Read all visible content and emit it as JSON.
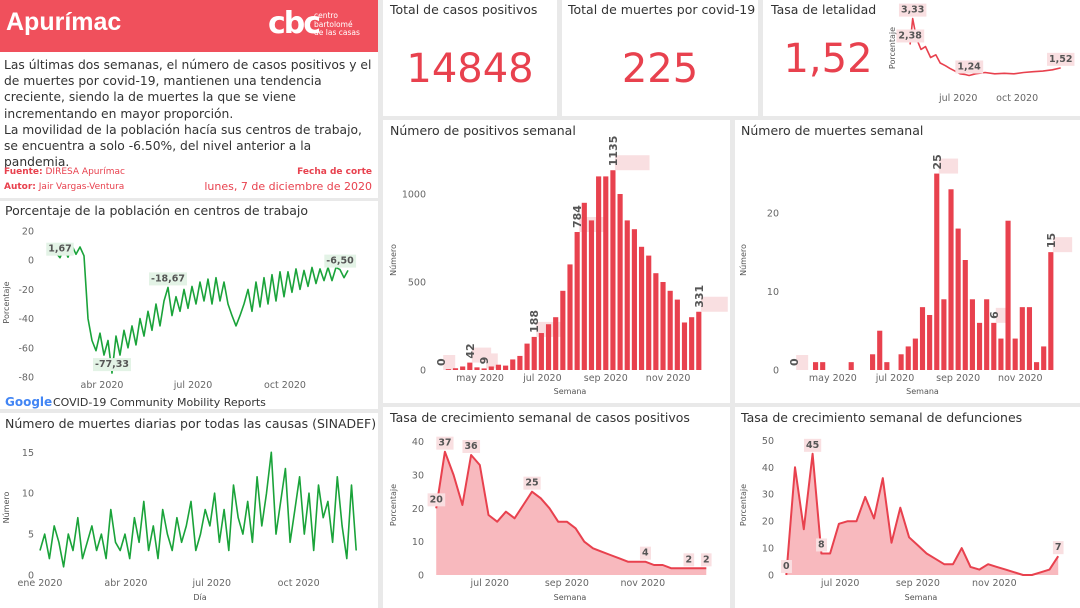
{
  "header": {
    "title": "Apurímac",
    "logo": "cbc",
    "logo_lines": [
      "centro",
      "bartolomé",
      "de las casas"
    ],
    "paragraphs": [
      "Las últimas dos semanas, el número de casos positivos y el de muertes por covid-19, mantienen una tendencia creciente, siendo la de muertes la que se viene incrementando en mayor proporción.",
      "La movilidad de la población hacía sus centros de trabajo, se encuentra a solo -6.50%, del nivel anterior a la pandemia."
    ],
    "source": {
      "label": "Fuente:",
      "value": "DIRESA Apurímac"
    },
    "author": {
      "label": "Autor:",
      "value": "Jair Vargas-Ventura"
    },
    "cutoff": {
      "label": "Fecha de corte",
      "value": "lunes, 7 de diciembre de 2020"
    }
  },
  "kpis": [
    {
      "label": "Total de casos positivos",
      "value": "14848"
    },
    {
      "label": "Total de muertes por covid-19",
      "value": "225"
    },
    {
      "label": "Tasa de letalidad",
      "value": "1,52"
    }
  ],
  "chart_data": [
    {
      "type": "line",
      "title": "Porcentaje de la población en centros de trabajo",
      "ylabel": "Porcentaje",
      "logo": "Google",
      "source": "COVID-19 Community Mobility Reports",
      "color": "#1aa33a",
      "label_bg": "#e3f3e6",
      "xlim": [
        30,
        350
      ],
      "xticks": [
        {
          "value": 92,
          "label": "abr 2020"
        },
        {
          "value": 183,
          "label": "jul 2020"
        },
        {
          "value": 275,
          "label": "oct 2020"
        }
      ],
      "ylim": [
        -80,
        22
      ],
      "yticks": [
        20,
        0,
        -20,
        -40,
        -60,
        -80
      ],
      "x": [
        46,
        50,
        54,
        58,
        62,
        66,
        70,
        74,
        78,
        82,
        86,
        90,
        94,
        98,
        102,
        106,
        110,
        114,
        118,
        122,
        126,
        130,
        134,
        138,
        142,
        146,
        150,
        154,
        158,
        162,
        166,
        170,
        174,
        178,
        182,
        186,
        190,
        194,
        198,
        202,
        206,
        210,
        214,
        218,
        222,
        226,
        230,
        234,
        238,
        242,
        246,
        250,
        254,
        258,
        262,
        266,
        270,
        274,
        278,
        282,
        286,
        290,
        294,
        298,
        302,
        306,
        310,
        314,
        318,
        322,
        326,
        330,
        334,
        338
      ],
      "values": [
        5,
        1.67,
        8,
        2,
        10,
        4,
        9,
        3,
        -40,
        -55,
        -62,
        -50,
        -65,
        -55,
        -77.33,
        -52,
        -65,
        -48,
        -60,
        -45,
        -58,
        -40,
        -52,
        -35,
        -48,
        -30,
        -45,
        -28,
        -18.67,
        -38,
        -25,
        -35,
        -20,
        -33,
        -18,
        -30,
        -15,
        -28,
        -13,
        -30,
        -12,
        -28,
        -15,
        -30,
        -38,
        -45,
        -38,
        -30,
        -20,
        -35,
        -15,
        -32,
        -12,
        -30,
        -10,
        -28,
        -8,
        -25,
        -8,
        -22,
        -6,
        -20,
        -7,
        -18,
        -5,
        -16,
        -6,
        -14,
        -5,
        -14,
        -5,
        -6.5,
        -12,
        -7
      ],
      "value_labels": [
        null,
        "1,67",
        null,
        null,
        null,
        null,
        null,
        null,
        null,
        null,
        null,
        null,
        null,
        null,
        "-77,33",
        null,
        null,
        null,
        null,
        null,
        null,
        null,
        null,
        null,
        null,
        null,
        null,
        null,
        "-18,67",
        null,
        null,
        null,
        null,
        null,
        null,
        null,
        null,
        null,
        null,
        null,
        null,
        null,
        null,
        null,
        null,
        null,
        null,
        null,
        null,
        null,
        null,
        null,
        null,
        null,
        null,
        null,
        null,
        null,
        null,
        null,
        null,
        null,
        null,
        null,
        null,
        null,
        null,
        null,
        null,
        null,
        null,
        "-6,50",
        null,
        null
      ]
    },
    {
      "type": "line",
      "title": "Número de muertes diarias por todas las causas (SINADEF)",
      "ylabel": "Número",
      "xlabel": "Día",
      "color": "#1aa33a",
      "xlim": [
        1,
        340
      ],
      "xticks": [
        {
          "value": 1,
          "label": "ene 2020"
        },
        {
          "value": 92,
          "label": "abr 2020"
        },
        {
          "value": 183,
          "label": "jul 2020"
        },
        {
          "value": 275,
          "label": "oct 2020"
        }
      ],
      "ylim": [
        0,
        16.5
      ],
      "yticks": [
        0,
        5,
        10,
        15
      ],
      "x": [
        1,
        6,
        11,
        16,
        21,
        26,
        31,
        36,
        41,
        46,
        51,
        56,
        61,
        66,
        71,
        76,
        81,
        86,
        91,
        96,
        101,
        106,
        111,
        116,
        121,
        126,
        131,
        136,
        141,
        146,
        151,
        156,
        161,
        166,
        171,
        176,
        181,
        186,
        191,
        196,
        201,
        206,
        211,
        216,
        221,
        226,
        231,
        236,
        241,
        246,
        251,
        256,
        261,
        266,
        271,
        276,
        281,
        286,
        291,
        296,
        301,
        306,
        311,
        316,
        321,
        326,
        331,
        336
      ],
      "values": [
        3,
        5,
        2,
        6,
        4,
        1,
        5,
        3,
        7,
        2,
        4,
        6,
        3,
        5,
        2,
        8,
        4,
        3,
        5,
        2,
        7,
        4,
        9,
        3,
        6,
        2,
        8,
        5,
        3,
        7,
        4,
        6,
        9,
        3,
        5,
        8,
        6,
        10,
        4,
        8,
        3,
        11,
        7,
        5,
        9,
        4,
        12,
        6,
        10,
        15,
        5,
        9,
        13,
        4,
        8,
        12,
        5,
        10,
        3,
        11,
        7,
        9,
        4,
        12,
        6,
        2,
        11,
        3
      ]
    },
    {
      "type": "bar",
      "title": "Número de positivos semanal",
      "ylabel": "Número",
      "xlabel": "Semana",
      "color": "#e8414e",
      "label_bg": "#f9dfe1",
      "xlim": [
        75,
        345
      ],
      "xticks": [
        {
          "value": 122,
          "label": "may 2020"
        },
        {
          "value": 183,
          "label": "jul 2020"
        },
        {
          "value": 245,
          "label": "sep 2020"
        },
        {
          "value": 306,
          "label": "nov 2020"
        }
      ],
      "ylim": [
        0,
        1250
      ],
      "yticks": [
        0,
        500,
        1000
      ],
      "x": [
        84,
        91,
        98,
        105,
        112,
        119,
        126,
        133,
        140,
        147,
        154,
        161,
        168,
        175,
        182,
        189,
        196,
        203,
        210,
        217,
        224,
        231,
        238,
        245,
        252,
        259,
        266,
        273,
        280,
        287,
        294,
        301,
        308,
        315,
        322,
        329,
        336
      ],
      "values": [
        0,
        5,
        10,
        20,
        42,
        15,
        9,
        20,
        30,
        25,
        60,
        80,
        150,
        188,
        210,
        260,
        300,
        450,
        600,
        784,
        950,
        850,
        1100,
        1100,
        1135,
        1000,
        850,
        800,
        700,
        650,
        550,
        500,
        450,
        400,
        270,
        300,
        331
      ],
      "value_labels": [
        "0",
        null,
        null,
        null,
        "42",
        null,
        "9",
        null,
        null,
        null,
        null,
        null,
        null,
        "188",
        null,
        null,
        null,
        null,
        null,
        "784",
        null,
        null,
        null,
        null,
        "1135",
        null,
        null,
        null,
        null,
        null,
        null,
        null,
        null,
        null,
        null,
        null,
        "331"
      ]
    },
    {
      "type": "bar",
      "title": "Número de muertes semanal",
      "ylabel": "Número",
      "xlabel": "Semana",
      "color": "#e8414e",
      "label_bg": "#f9dfe1",
      "xlim": [
        75,
        345
      ],
      "xticks": [
        {
          "value": 122,
          "label": "may 2020"
        },
        {
          "value": 183,
          "label": "jul 2020"
        },
        {
          "value": 245,
          "label": "sep 2020"
        },
        {
          "value": 306,
          "label": "nov 2020"
        }
      ],
      "ylim": [
        0,
        28
      ],
      "yticks": [
        0,
        10,
        20
      ],
      "x": [
        84,
        91,
        98,
        105,
        112,
        119,
        126,
        133,
        140,
        147,
        154,
        161,
        168,
        175,
        182,
        189,
        196,
        203,
        210,
        217,
        224,
        231,
        238,
        245,
        252,
        259,
        266,
        273,
        280,
        287,
        294,
        301,
        308,
        315,
        322,
        329,
        336
      ],
      "values": [
        0,
        0,
        0,
        1,
        1,
        0,
        0,
        0,
        1,
        0,
        0,
        2,
        5,
        1,
        0,
        2,
        3,
        4,
        8,
        7,
        25,
        9,
        23,
        18,
        14,
        9,
        6,
        9,
        6,
        4,
        19,
        4,
        8,
        8,
        1,
        3,
        15
      ],
      "value_labels": [
        "0",
        null,
        null,
        null,
        null,
        null,
        null,
        null,
        null,
        null,
        null,
        null,
        null,
        null,
        null,
        null,
        null,
        null,
        null,
        null,
        "25",
        null,
        null,
        null,
        null,
        null,
        null,
        null,
        "6",
        null,
        null,
        null,
        null,
        null,
        null,
        null,
        "15"
      ]
    },
    {
      "type": "area",
      "title": "Tasa de crecimiento semanal de casos positivos",
      "ylabel": "Porcentaje",
      "xlabel": "Semana",
      "color": "#e8414e",
      "fill": "#f8b9be",
      "label_bg": "#f9dfe1",
      "xlim": [
        135,
        360
      ],
      "xticks": [
        {
          "value": 183,
          "label": "jul 2020"
        },
        {
          "value": 245,
          "label": "sep 2020"
        },
        {
          "value": 306,
          "label": "nov 2020"
        }
      ],
      "ylim": [
        0,
        42
      ],
      "yticks": [
        0,
        10,
        20,
        30,
        40
      ],
      "x": [
        140,
        147,
        154,
        161,
        168,
        175,
        182,
        189,
        196,
        203,
        210,
        217,
        224,
        231,
        238,
        245,
        252,
        259,
        266,
        273,
        280,
        287,
        294,
        301,
        308,
        315,
        322,
        329,
        336,
        343,
        350,
        357
      ],
      "values": [
        20,
        37,
        30,
        21,
        36,
        33,
        18,
        16,
        19,
        17,
        21,
        25,
        23,
        20,
        16,
        16,
        14,
        10,
        8,
        7,
        6,
        5,
        4,
        4,
        4,
        3,
        3,
        2,
        2,
        2,
        2,
        2
      ],
      "value_labels": [
        "20",
        "37",
        null,
        null,
        "36",
        null,
        null,
        null,
        null,
        null,
        null,
        "25",
        null,
        null,
        null,
        null,
        null,
        null,
        null,
        null,
        null,
        null,
        null,
        null,
        "4",
        null,
        null,
        null,
        null,
        "2",
        null,
        "2"
      ]
    },
    {
      "type": "area",
      "title": "Tasa de crecimiento semanal de defunciones",
      "ylabel": "Porcentaje",
      "xlabel": "Semana",
      "color": "#e8414e",
      "fill": "#f8b9be",
      "label_bg": "#f9dfe1",
      "xlim": [
        135,
        360
      ],
      "xticks": [
        {
          "value": 183,
          "label": "jul 2020"
        },
        {
          "value": 245,
          "label": "sep 2020"
        },
        {
          "value": 306,
          "label": "nov 2020"
        }
      ],
      "ylim": [
        0,
        52
      ],
      "yticks": [
        0,
        10,
        20,
        30,
        40,
        50
      ],
      "x": [
        140,
        147,
        154,
        161,
        168,
        175,
        182,
        189,
        196,
        203,
        210,
        217,
        224,
        231,
        238,
        245,
        252,
        259,
        266,
        273,
        280,
        287,
        294,
        301,
        308,
        315,
        322,
        329,
        336,
        343,
        350,
        357
      ],
      "values": [
        0,
        40,
        17,
        45,
        8,
        8,
        19,
        20,
        20,
        29,
        21,
        36,
        12,
        25,
        14,
        11,
        8,
        6,
        4,
        4,
        10,
        3,
        2,
        4,
        3,
        2,
        1,
        0,
        0,
        1,
        2,
        7
      ],
      "value_labels": [
        "0",
        null,
        null,
        "45",
        "8",
        null,
        null,
        null,
        null,
        null,
        null,
        null,
        null,
        null,
        null,
        null,
        null,
        null,
        null,
        null,
        null,
        null,
        null,
        null,
        null,
        null,
        null,
        null,
        null,
        null,
        null,
        "7"
      ]
    },
    {
      "type": "line",
      "ylabel": "Porcentaje",
      "color": "#e8414e",
      "label_bg": "#f9dfe1",
      "xlim": [
        100,
        345
      ],
      "xticks": [
        {
          "value": 183,
          "label": "jul 2020"
        },
        {
          "value": 275,
          "label": "oct 2020"
        }
      ],
      "ylim": [
        1,
        3.5
      ],
      "x": [
        108,
        112,
        118,
        125,
        132,
        140,
        148,
        155,
        163,
        170,
        178,
        186,
        193,
        200,
        210,
        225,
        240,
        255,
        270,
        285,
        300,
        315,
        330,
        343
      ],
      "values": [
        2.38,
        3.33,
        2.6,
        2.2,
        2.3,
        1.9,
        2.0,
        1.7,
        1.6,
        1.5,
        1.4,
        1.3,
        1.28,
        1.24,
        1.3,
        1.35,
        1.3,
        1.32,
        1.3,
        1.35,
        1.38,
        1.4,
        1.45,
        1.52
      ],
      "value_labels": [
        "2,38",
        "3,33",
        null,
        null,
        null,
        null,
        null,
        null,
        null,
        null,
        null,
        null,
        null,
        "1,24",
        null,
        null,
        null,
        null,
        null,
        null,
        null,
        null,
        null,
        "1,52"
      ]
    }
  ]
}
